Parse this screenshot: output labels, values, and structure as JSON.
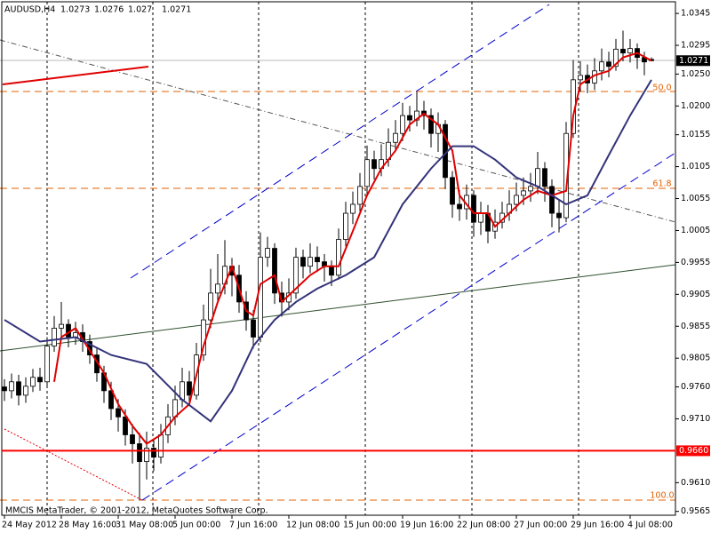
{
  "chart_data": {
    "type": "candlestick",
    "title": "AUDUSD,H4",
    "footer": "MMCIS MetaTrader, © 2001-2012, MetaQuotes Software Corp.",
    "categories": [
      "24 May 2012",
      null,
      null,
      null,
      null,
      null,
      null,
      null,
      "28 May 16:00",
      null,
      null,
      null,
      null,
      null,
      null,
      null,
      "31 May 08:00",
      null,
      null,
      null,
      null,
      null,
      null,
      null,
      "5 Jun 00:00",
      null,
      null,
      null,
      null,
      null,
      null,
      null,
      "7 Jun 16:00",
      null,
      null,
      null,
      null,
      null,
      null,
      null,
      "12 Jun 08:00",
      null,
      null,
      null,
      null,
      null,
      null,
      null,
      "15 Jun 00:00",
      null,
      null,
      null,
      null,
      null,
      null,
      null,
      "19 Jun 16:00",
      null,
      null,
      null,
      null,
      null,
      null,
      null,
      "22 Jun 08:00",
      null,
      null,
      null,
      null,
      null,
      null,
      null,
      "27 Jun 00:00",
      null,
      null,
      null,
      null,
      null,
      null,
      null,
      "29 Jun 16:00",
      null,
      null,
      null,
      null,
      null,
      null,
      null,
      "4 Jul 08:00",
      null,
      null,
      null
    ],
    "open": [
      0.976,
      0.9754,
      0.9768,
      0.9747,
      0.9761,
      0.9775,
      0.9768,
      0.9824,
      0.9852,
      0.9858,
      0.9838,
      0.9845,
      0.9831,
      0.981,
      0.9782,
      0.9754,
      0.9726,
      0.9713,
      0.9685,
      0.9671,
      0.9643,
      0.9664,
      0.965,
      0.9685,
      0.9713,
      0.974,
      0.9768,
      0.9747,
      0.981,
      0.9865,
      0.9907,
      0.9921,
      0.9949,
      0.9935,
      0.9893,
      0.9865,
      0.9838,
      0.9963,
      0.9977,
      0.9907,
      0.9893,
      0.9907,
      0.9963,
      0.9949,
      0.9963,
      0.9956,
      0.9949,
      0.9935,
      0.9991,
      1.0032,
      1.0046,
      1.0074,
      1.0116,
      1.0102,
      1.0116,
      1.0143,
      1.0157,
      1.0185,
      1.0178,
      1.0192,
      1.0185,
      1.0157,
      1.0171,
      1.0088,
      1.0046,
      1.0039,
      1.006,
      1.0018,
      1.0032,
      1.0004,
      1.0018,
      1.0032,
      1.0046,
      1.006,
      1.0067,
      1.0074,
      1.0102,
      1.0074,
      1.0032,
      1.0025,
      1.0157,
      1.0241,
      1.0248,
      1.0236,
      1.0255,
      1.0269,
      1.0262,
      1.0289,
      1.0283,
      1.029,
      1.0276,
      1.0273
    ],
    "high": [
      0.9772,
      0.9781,
      0.9779,
      0.9775,
      0.9788,
      0.979,
      0.9838,
      0.9871,
      0.9893,
      0.9866,
      0.9862,
      0.9858,
      0.9842,
      0.9821,
      0.9793,
      0.9768,
      0.9741,
      0.9725,
      0.9702,
      0.9688,
      0.969,
      0.9679,
      0.9702,
      0.9733,
      0.9762,
      0.979,
      0.9785,
      0.9829,
      0.9889,
      0.9945,
      0.9968,
      0.999,
      0.9962,
      0.9951,
      0.991,
      0.988,
      1.0002,
      0.9995,
      0.9985,
      0.9925,
      0.993,
      0.9978,
      0.9975,
      0.9985,
      0.998,
      0.9968,
      0.9958,
      1.0008,
      1.005,
      1.0066,
      1.0095,
      1.0138,
      1.013,
      1.014,
      1.0165,
      1.0178,
      1.0205,
      1.02,
      1.0222,
      1.0208,
      1.0196,
      1.019,
      1.0178,
      1.0098,
      1.0068,
      1.0077,
      1.0068,
      1.005,
      1.0045,
      1.0038,
      1.005,
      1.0068,
      1.008,
      1.0088,
      1.0095,
      1.0128,
      1.0112,
      1.0085,
      1.0052,
      1.0175,
      1.0272,
      1.027,
      1.0265,
      1.0275,
      1.029,
      1.0285,
      1.0305,
      1.0318,
      1.0305,
      1.0298,
      1.0285,
      1.0276
    ],
    "low": [
      0.9738,
      0.9742,
      0.9731,
      0.9735,
      0.9752,
      0.9754,
      0.976,
      0.9815,
      0.9838,
      0.9822,
      0.9826,
      0.9815,
      0.9796,
      0.9768,
      0.9735,
      0.9708,
      0.969,
      0.9668,
      0.964,
      0.9583,
      0.9615,
      0.9628,
      0.964,
      0.9672,
      0.97,
      0.9728,
      0.9733,
      0.974,
      0.9801,
      0.9852,
      0.989,
      0.9905,
      0.9902,
      0.9876,
      0.9848,
      0.982,
      0.983,
      0.9948,
      0.989,
      0.987,
      0.988,
      0.9898,
      0.993,
      0.9938,
      0.994,
      0.9925,
      0.9918,
      0.9928,
      0.998,
      1.0015,
      1.0035,
      1.0062,
      1.0085,
      1.009,
      1.0105,
      1.013,
      1.0145,
      1.016,
      1.0168,
      1.0163,
      1.0135,
      1.0128,
      1.007,
      1.0025,
      1.002,
      1.0022,
      0.9995,
      0.9998,
      0.9985,
      0.9992,
      1.0008,
      1.002,
      1.0035,
      1.0045,
      1.005,
      1.0062,
      1.005,
      1.001,
      1.0002,
      1.0018,
      1.015,
      1.0222,
      1.022,
      1.0225,
      1.024,
      1.0245,
      1.0255,
      1.027,
      1.0268,
      1.0258,
      1.0248,
      1.027
    ],
    "close": [
      0.9754,
      0.9768,
      0.9747,
      0.9761,
      0.9775,
      0.9768,
      0.9824,
      0.9852,
      0.9858,
      0.9838,
      0.9845,
      0.9831,
      0.981,
      0.9782,
      0.9754,
      0.9726,
      0.9713,
      0.9685,
      0.9671,
      0.9643,
      0.9664,
      0.965,
      0.9685,
      0.9713,
      0.974,
      0.9768,
      0.9747,
      0.981,
      0.9865,
      0.9907,
      0.9921,
      0.9949,
      0.9935,
      0.9893,
      0.9865,
      0.9838,
      0.9963,
      0.9977,
      0.9907,
      0.9893,
      0.9907,
      0.9963,
      0.9949,
      0.9963,
      0.9956,
      0.9949,
      0.9935,
      0.9991,
      1.0032,
      1.0046,
      1.0074,
      1.0116,
      1.0102,
      1.0116,
      1.0143,
      1.0157,
      1.0185,
      1.0178,
      1.0192,
      1.0185,
      1.0157,
      1.0171,
      1.0088,
      1.0046,
      1.0039,
      1.006,
      1.0018,
      1.0032,
      1.0004,
      1.0018,
      1.0032,
      1.0046,
      1.006,
      1.0067,
      1.0074,
      1.0102,
      1.0074,
      1.0032,
      1.0025,
      1.0157,
      1.0241,
      1.0248,
      1.0236,
      1.0255,
      1.0269,
      1.0262,
      1.0289,
      1.0283,
      1.029,
      1.0276,
      1.0269,
      1.0271
    ],
    "lines": [
      {
        "color": "#e00000",
        "x": [
          7,
          8,
          10,
          12,
          14,
          16,
          18,
          20,
          22,
          24,
          26,
          28,
          30,
          32,
          34,
          35,
          36,
          38,
          39,
          41,
          43,
          45,
          47,
          49,
          51,
          53,
          55,
          57,
          59,
          61,
          63,
          64,
          66,
          68,
          69,
          71,
          73,
          75,
          77,
          79,
          80,
          81,
          83,
          85,
          87,
          89,
          91
        ],
        "values": [
          0.9768,
          0.9838,
          0.9852,
          0.9817,
          0.9782,
          0.9733,
          0.9699,
          0.9671,
          0.9685,
          0.9713,
          0.9733,
          0.9824,
          0.9893,
          0.9949,
          0.9879,
          0.9872,
          0.9921,
          0.9935,
          0.9893,
          0.9914,
          0.9935,
          0.9949,
          0.9949,
          1.0004,
          1.006,
          1.0102,
          1.013,
          1.0171,
          1.0188,
          1.0171,
          1.013,
          1.006,
          1.0032,
          1.0032,
          1.0011,
          1.0032,
          1.0053,
          1.0067,
          1.006,
          1.0067,
          1.0185,
          1.0234,
          1.0248,
          1.0255,
          1.0276,
          1.0283,
          1.0271
        ]
      },
      {
        "color": "#33337a",
        "x": [
          0,
          5,
          10,
          15,
          20,
          25,
          29,
          32,
          35,
          38,
          41,
          44,
          48,
          52,
          56,
          60,
          63,
          66,
          69,
          72,
          75,
          79,
          82,
          85,
          88,
          91
        ],
        "values": [
          0.9865,
          0.9831,
          0.9838,
          0.981,
          0.9796,
          0.974,
          0.9706,
          0.9754,
          0.9824,
          0.9865,
          0.9893,
          0.9914,
          0.9935,
          0.9963,
          1.0046,
          1.0102,
          1.0137,
          1.0137,
          1.0116,
          1.0088,
          1.0074,
          1.0046,
          1.006,
          1.0123,
          1.0185,
          1.0241
        ]
      }
    ],
    "levels": [
      {
        "value": 0.966,
        "label": "0.9660",
        "color": "#ff0000"
      }
    ],
    "fib_labels": [
      "50.0",
      "61.8",
      "100.0"
    ],
    "ylim": [
      0.9559,
      1.0366
    ],
    "yticks": [
      1.0345,
      1.0295,
      {
        "value": 1.025,
        "label": "1.0250"
      },
      {
        "value": 1.02,
        "label": "1.0200"
      },
      1.0155,
      1.0105,
      1.0055,
      1.0005,
      0.9955,
      0.9905,
      0.9855,
      0.9805,
      {
        "value": 0.976,
        "label": "0.9760"
      },
      {
        "value": 0.971,
        "label": "0.9710"
      },
      {
        "value": 0.961,
        "label": "0.9610"
      },
      0.9565
    ]
  }
}
